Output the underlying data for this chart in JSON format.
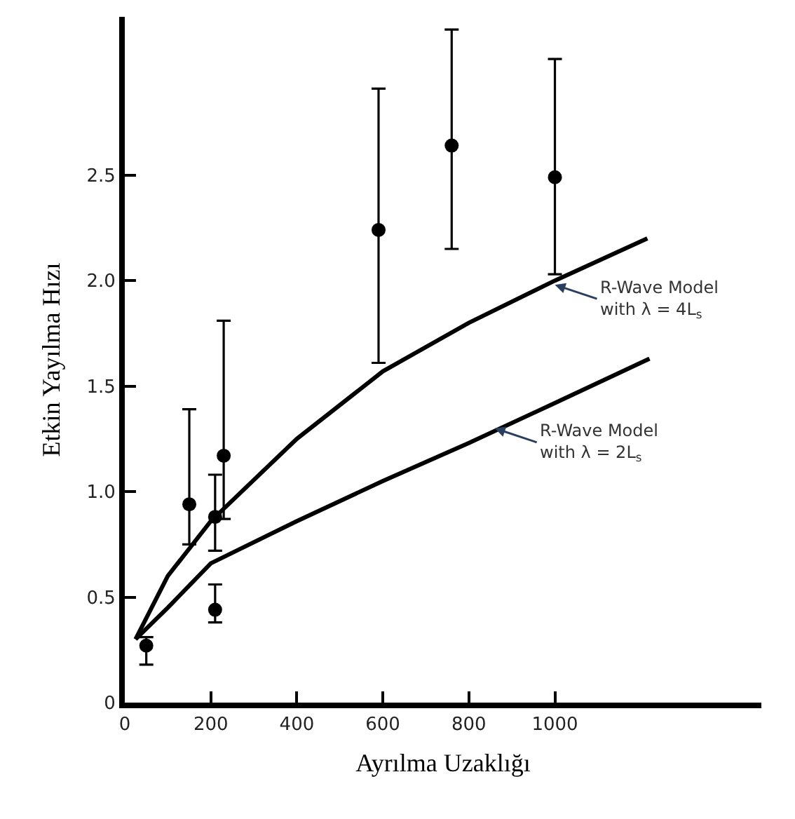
{
  "chart_data": {
    "type": "scatter",
    "xlabel": "Ayrılma Uzaklığı",
    "ylabel": "Etkin Yayılma Hızı",
    "xlim": [
      0,
      1480
    ],
    "ylim": [
      0,
      3.25
    ],
    "xticks": [
      0,
      200,
      400,
      600,
      800,
      1000
    ],
    "yticks": [
      0,
      0.5,
      {
        "value": 1,
        "label": "1.0"
      },
      1.5,
      {
        "value": 2,
        "label": "2.0"
      },
      2.5
    ],
    "series": [
      {
        "color": "#000000",
        "marker": "circle",
        "x": [
          50,
          150,
          210,
          210,
          230,
          590,
          760,
          1000
        ],
        "values": [
          0.27,
          0.94,
          0.88,
          0.44,
          1.17,
          2.24,
          2.64,
          2.49
        ],
        "errors": [
          [
            0.18,
            0.31
          ],
          [
            0.75,
            1.39
          ],
          [
            0.72,
            1.08
          ],
          [
            0.38,
            0.56
          ],
          [
            0.87,
            1.81
          ],
          [
            1.61,
            2.91
          ],
          [
            2.15,
            3.19
          ],
          [
            2.03,
            3.05
          ]
        ]
      },
      {
        "type": "line",
        "color": "#000000",
        "x": [
          25,
          100,
          200,
          400,
          600,
          800,
          1000,
          1215
        ],
        "values": [
          0.3,
          0.6,
          0.86,
          1.25,
          1.57,
          1.8,
          2.0,
          2.2
        ]
      },
      {
        "type": "line",
        "color": "#000000",
        "x": [
          25,
          100,
          200,
          400,
          600,
          800,
          1000,
          1220
        ],
        "values": [
          0.3,
          0.45,
          0.66,
          0.86,
          1.05,
          1.23,
          1.42,
          1.63
        ]
      }
    ],
    "annotations": [
      {
        "text": "R-Wave Model\nwith λ = 4L$_{s}$",
        "x": 1000,
        "y": 1.98
      },
      {
        "text": "R-Wave Model\nwith λ = 2L$_{s}$",
        "x": 860,
        "y": 1.3
      }
    ]
  }
}
